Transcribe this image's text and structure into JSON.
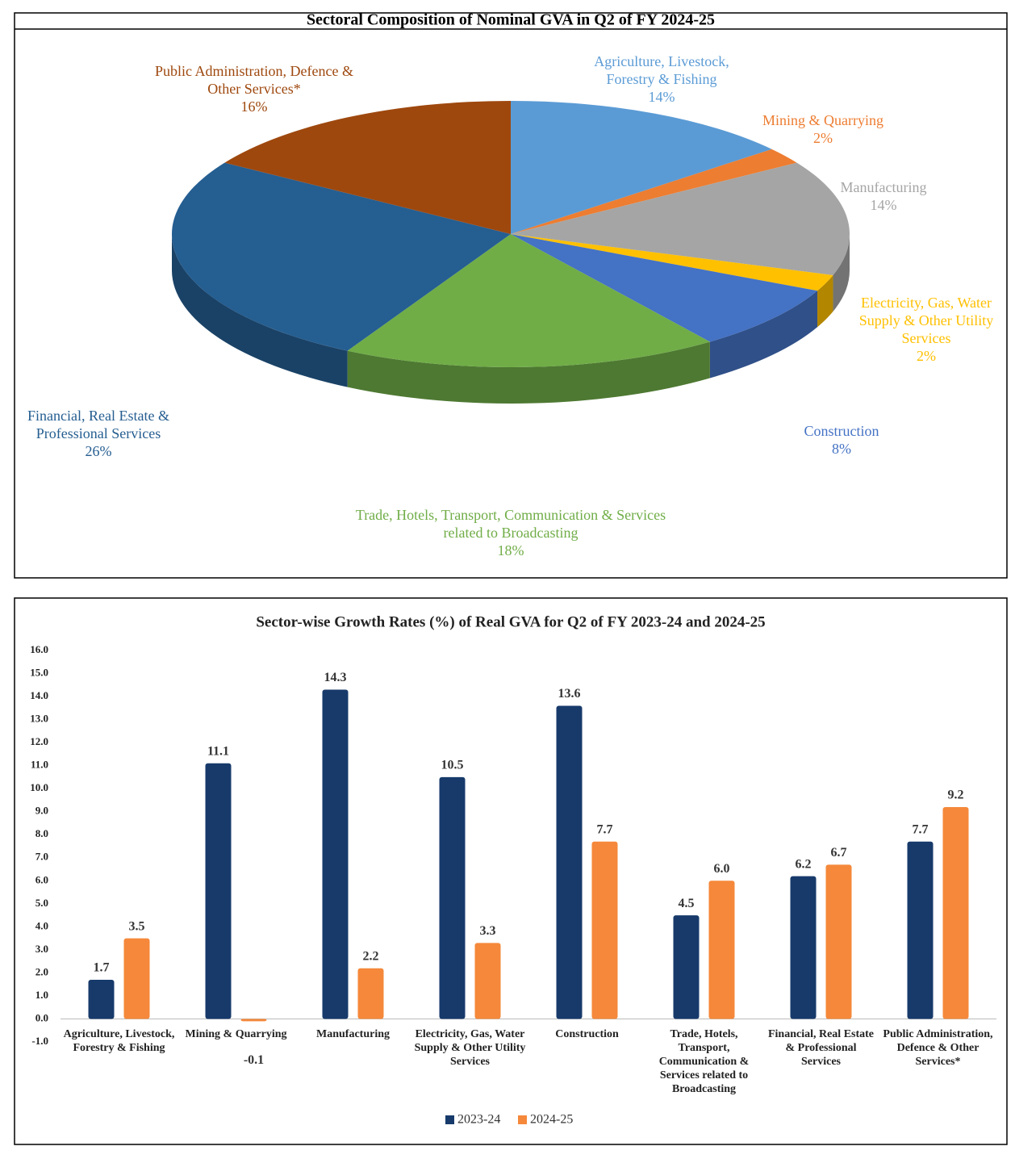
{
  "chart_data": [
    {
      "type": "pie",
      "title": "Sectoral Composition of Nominal GVA in Q2 of FY 2024-25",
      "categories": [
        "Agriculture, Livestock, Forestry & Fishing",
        "Mining & Quarrying",
        "Manufacturing",
        "Electricity, Gas, Water Supply & Other Utility Services",
        "Construction",
        "Trade, Hotels, Transport, Communication & Services related to Broadcasting",
        "Financial, Real Estate & Professional Services",
        "Public Administration, Defence & Other Services*"
      ],
      "values": [
        14,
        2,
        14,
        2,
        8,
        18,
        26,
        16
      ],
      "value_labels": [
        "14%",
        "2%",
        "14%",
        "2%",
        "8%",
        "18%",
        "26%",
        "16%"
      ],
      "colors": [
        "#5b9bd5",
        "#ed7d31",
        "#a5a5a5",
        "#ffc000",
        "#4472c4",
        "#70ad47",
        "#255e91",
        "#9e480e"
      ]
    },
    {
      "type": "bar",
      "title": "Sector-wise Growth Rates (%) of Real GVA for Q2 of FY 2023-24 and 2024-25",
      "categories": [
        "Agriculture, Livestock, Forestry & Fishing",
        "Mining & Quarrying",
        "Manufacturing",
        "Electricity, Gas, Water Supply & Other Utility Services",
        "Construction",
        "Trade, Hotels, Transport, Communication & Services related to Broadcasting",
        "Financial, Real Estate & Professional Services",
        "Public Administration, Defence & Other Services*"
      ],
      "series": [
        {
          "name": "2023-24",
          "color": "#173a6b",
          "values": [
            1.7,
            11.1,
            14.3,
            10.5,
            13.6,
            4.5,
            6.2,
            7.7
          ],
          "value_labels": [
            "1.7",
            "11.1",
            "14.3",
            "10.5",
            "13.6",
            "4.5",
            "6.2",
            "7.7"
          ]
        },
        {
          "name": "2024-25",
          "color": "#f5883a",
          "values": [
            3.5,
            -0.1,
            2.2,
            3.3,
            7.7,
            6,
            6.7,
            9.2
          ],
          "value_labels": [
            "3.5",
            "-0.1",
            "2.2",
            "3.3",
            "7.7",
            "6.0",
            "6.7",
            "9.2"
          ]
        }
      ],
      "ylim": [
        -1,
        16
      ],
      "yticks": [
        {
          "value": -1,
          "label": "-1.0"
        },
        {
          "value": 0,
          "label": "0.0"
        },
        {
          "value": 1,
          "label": "1.0"
        },
        {
          "value": 2,
          "label": "2.0"
        },
        {
          "value": 3,
          "label": "3.0"
        },
        {
          "value": 4,
          "label": "4.0"
        },
        {
          "value": 5,
          "label": "5.0"
        },
        {
          "value": 6,
          "label": "6.0"
        },
        {
          "value": 7,
          "label": "7.0"
        },
        {
          "value": 8,
          "label": "8.0"
        },
        {
          "value": 9,
          "label": "9.0"
        },
        {
          "value": 10,
          "label": "10.0"
        },
        {
          "value": 11,
          "label": "11.0"
        },
        {
          "value": 12,
          "label": "12.0"
        },
        {
          "value": 13,
          "label": "13.0"
        },
        {
          "value": 14,
          "label": "14.0"
        },
        {
          "value": 15,
          "label": "15.0"
        },
        {
          "value": 16,
          "label": "16.0"
        }
      ],
      "legend": "bottom",
      "grid": false
    }
  ]
}
